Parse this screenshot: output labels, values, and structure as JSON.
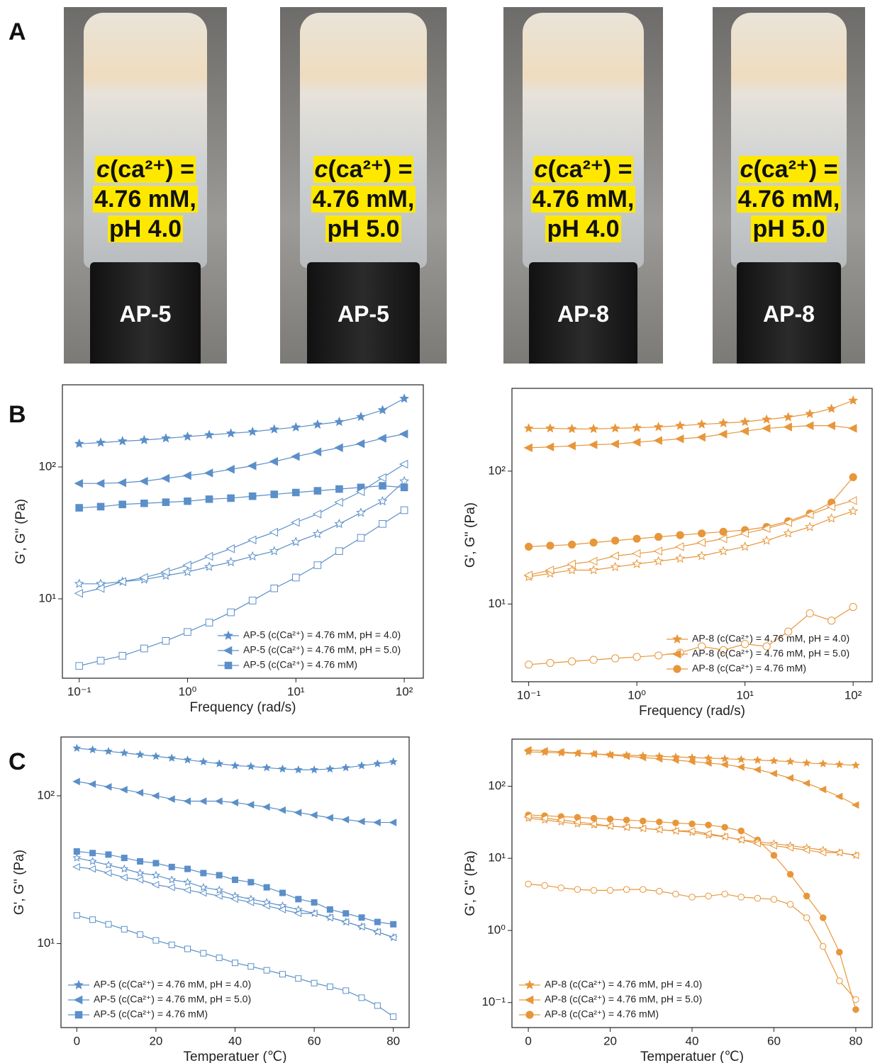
{
  "panels": [
    "A",
    "B",
    "C"
  ],
  "photos": [
    {
      "symbol": "c",
      "line1": "(ca²⁺) =",
      "line2": "4.76 mM,",
      "line3": "pH 4.0",
      "label": "AP-5"
    },
    {
      "symbol": "c",
      "line1": "(ca²⁺) =",
      "line2": "4.76 mM,",
      "line3": "pH 5.0",
      "label": "AP-5"
    },
    {
      "symbol": "c",
      "line1": "(ca²⁺) =",
      "line2": "4.76 mM,",
      "line3": "pH 4.0",
      "label": "AP-8"
    },
    {
      "symbol": "c",
      "line1": "(ca²⁺) =",
      "line2": "4.76 mM,",
      "line3": "pH 5.0",
      "label": "AP-8"
    }
  ],
  "chart_data": [
    {
      "type": "line",
      "xlabel": "Frequency (rad/s)",
      "ylabel": "G', G'' (Pa)",
      "xlog": true,
      "ylog": true,
      "legend": "lower right",
      "x": [
        0.1,
        0.158,
        0.251,
        0.398,
        0.631,
        1,
        1.585,
        2.512,
        3.981,
        6.31,
        10,
        15.85,
        25.12,
        39.81,
        63.1,
        100
      ],
      "xlim": [
        0.07,
        150
      ],
      "ylim": [
        2.5,
        420
      ],
      "xticks": [
        {
          "value": 0.1,
          "label": "10⁻¹"
        },
        {
          "value": 1,
          "label": "10⁰"
        },
        {
          "value": 10,
          "label": "10¹"
        },
        {
          "value": 100,
          "label": "10²"
        }
      ],
      "yticks": [
        {
          "value": 10,
          "label": "10¹"
        },
        {
          "value": 100,
          "label": "10²"
        }
      ],
      "series": [
        {
          "name": "AP-5 (c(Ca²⁺) = 4.76 mM, pH = 4.0)",
          "color": "#5b8fc9",
          "marker": "star",
          "fill": "filled",
          "values": [
            150,
            153,
            157,
            160,
            165,
            170,
            175,
            180,
            185,
            193,
            200,
            210,
            220,
            240,
            270,
            330
          ]
        },
        {
          "name": "AP-5 (c(Ca²⁺) = 4.76 mM, pH = 5.0)",
          "color": "#5b8fc9",
          "marker": "triangle-left",
          "fill": "filled",
          "values": [
            75,
            75,
            76,
            78,
            82,
            86,
            90,
            96,
            102,
            110,
            120,
            130,
            140,
            150,
            165,
            178
          ]
        },
        {
          "name": "AP-5 (c(Ca²⁺) = 4.76 mM)",
          "color": "#5b8fc9",
          "marker": "square",
          "fill": "filled",
          "values": [
            49,
            50,
            52,
            53,
            54,
            55,
            57,
            58,
            60,
            62,
            64,
            66,
            68,
            70,
            72,
            70
          ]
        },
        {
          "color": "#5b8fc9",
          "marker": "star",
          "fill": "open",
          "values": [
            13,
            13,
            13.5,
            14,
            15,
            16,
            17.5,
            19,
            21,
            23,
            27,
            31,
            37,
            45,
            55,
            78
          ]
        },
        {
          "color": "#5b8fc9",
          "marker": "triangle-left",
          "fill": "open",
          "values": [
            11,
            12,
            13.5,
            14.5,
            16,
            18,
            21,
            24,
            28,
            32,
            38,
            44,
            54,
            65,
            83,
            105
          ]
        },
        {
          "color": "#5b8fc9",
          "marker": "square",
          "fill": "open",
          "values": [
            3.1,
            3.4,
            3.7,
            4.2,
            4.8,
            5.6,
            6.6,
            7.9,
            9.7,
            12,
            14.5,
            18,
            23,
            29,
            37,
            47
          ]
        }
      ]
    },
    {
      "type": "line",
      "xlabel": "Frequency (rad/s)",
      "ylabel": "G', G'' (Pa)",
      "xlog": true,
      "ylog": true,
      "legend": "lower right",
      "x": [
        0.1,
        0.158,
        0.251,
        0.398,
        0.631,
        1,
        1.585,
        2.512,
        3.981,
        6.31,
        10,
        15.85,
        25.12,
        39.81,
        63.1,
        100
      ],
      "xlim": [
        0.07,
        150
      ],
      "ylim": [
        2.6,
        420
      ],
      "xticks": [
        {
          "value": 0.1,
          "label": "10⁻¹"
        },
        {
          "value": 1,
          "label": "10⁰"
        },
        {
          "value": 10,
          "label": "10¹"
        },
        {
          "value": 100,
          "label": "10²"
        }
      ],
      "yticks": [
        {
          "value": 10,
          "label": "10¹"
        },
        {
          "value": 100,
          "label": "10²"
        }
      ],
      "series": [
        {
          "name": "AP-8 (c(Ca²⁺) = 4.76 mM, pH = 4.0)",
          "color": "#e8963a",
          "marker": "star",
          "fill": "filled",
          "values": [
            210,
            210,
            208,
            208,
            210,
            212,
            215,
            220,
            225,
            230,
            235,
            245,
            255,
            270,
            295,
            340
          ]
        },
        {
          "name": "AP-8 (c(Ca²⁺) = 4.76 mM, pH = 5.0)",
          "color": "#e8963a",
          "marker": "triangle-left",
          "fill": "filled",
          "values": [
            150,
            152,
            155,
            158,
            160,
            165,
            170,
            175,
            180,
            190,
            200,
            210,
            215,
            220,
            220,
            210
          ]
        },
        {
          "name": "AP-8 (c(Ca²⁺) = 4.76 mM)",
          "color": "#e8963a",
          "marker": "circle",
          "fill": "filled",
          "values": [
            27,
            27.5,
            28,
            29,
            30,
            31,
            32,
            33,
            34,
            35,
            36,
            38,
            42,
            48,
            58,
            90
          ]
        },
        {
          "color": "#e8963a",
          "marker": "star",
          "fill": "open",
          "values": [
            16,
            17,
            18,
            18,
            19,
            20,
            21,
            22,
            23,
            25,
            27,
            30,
            34,
            38,
            44,
            50
          ]
        },
        {
          "color": "#e8963a",
          "marker": "triangle-left",
          "fill": "open",
          "values": [
            16.5,
            18,
            20,
            21,
            23,
            24,
            25,
            27,
            29,
            31,
            34,
            37,
            41,
            47,
            54,
            60
          ]
        },
        {
          "color": "#e8963a",
          "marker": "circle",
          "fill": "open",
          "values": [
            3.5,
            3.6,
            3.7,
            3.8,
            3.9,
            4.0,
            4.1,
            4.3,
            4.8,
            4.5,
            5.0,
            4.8,
            6.2,
            8.5,
            7.5,
            9.5
          ]
        }
      ]
    },
    {
      "type": "line",
      "xlabel": "Temperatuer (℃)",
      "ylabel": "G', G'' (Pa)",
      "xlog": false,
      "ylog": true,
      "legend": "lower left",
      "x": [
        0,
        4,
        8,
        12,
        16,
        20,
        24,
        28,
        32,
        36,
        40,
        44,
        48,
        52,
        56,
        60,
        64,
        68,
        72,
        76,
        80
      ],
      "xlim": [
        -4,
        84
      ],
      "ylim": [
        2.7,
        250
      ],
      "xticks": [
        0,
        20,
        40,
        60,
        80
      ],
      "yticks": [
        {
          "value": 10,
          "label": "10¹"
        },
        {
          "value": 100,
          "label": "10²"
        }
      ],
      "series": [
        {
          "name": "AP-5 (c(Ca²⁺) = 4.76 mM, pH = 4.0)",
          "color": "#5b8fc9",
          "marker": "star",
          "fill": "filled",
          "values": [
            210,
            205,
            200,
            195,
            190,
            185,
            180,
            175,
            170,
            165,
            160,
            158,
            155,
            152,
            150,
            150,
            152,
            155,
            160,
            165,
            170
          ]
        },
        {
          "name": "AP-5 (c(Ca²⁺) = 4.76 mM, pH = 5.0)",
          "color": "#5b8fc9",
          "marker": "triangle-left",
          "fill": "filled",
          "values": [
            125,
            120,
            115,
            110,
            105,
            100,
            95,
            92,
            92,
            92,
            90,
            87,
            84,
            80,
            77,
            74,
            71,
            69,
            67,
            66,
            66
          ]
        },
        {
          "name": "AP-5 (c(Ca²⁺) = 4.76 mM)",
          "color": "#5b8fc9",
          "marker": "square",
          "fill": "filled",
          "values": [
            42,
            41,
            40,
            38,
            36,
            35,
            33,
            32,
            30,
            29,
            27,
            26,
            24,
            22,
            20,
            19,
            17,
            16,
            15,
            14,
            13.5
          ]
        },
        {
          "color": "#5b8fc9",
          "marker": "star",
          "fill": "open",
          "values": [
            38,
            36,
            34,
            32,
            30,
            29,
            27,
            26,
            24,
            23,
            21,
            20,
            19,
            18,
            17,
            16,
            15,
            14,
            13,
            12,
            11
          ]
        },
        {
          "color": "#5b8fc9",
          "marker": "triangle-left",
          "fill": "open",
          "values": [
            33,
            32,
            30,
            28,
            27,
            25,
            24,
            23,
            22,
            21,
            20,
            19,
            18,
            17,
            16,
            16,
            15,
            14,
            13,
            12,
            11
          ]
        },
        {
          "color": "#5b8fc9",
          "marker": "square",
          "fill": "open",
          "values": [
            15.5,
            14.5,
            13.5,
            12.5,
            11.5,
            10.5,
            9.8,
            9.2,
            8.6,
            8,
            7.4,
            7,
            6.6,
            6.2,
            5.8,
            5.4,
            5.1,
            4.8,
            4.3,
            3.8,
            3.2
          ]
        }
      ]
    },
    {
      "type": "line",
      "xlabel": "Temperatuer (℃)",
      "ylabel": "G', G'' (Pa)",
      "xlog": false,
      "ylog": true,
      "legend": "lower left",
      "x": [
        0,
        4,
        8,
        12,
        16,
        20,
        24,
        28,
        32,
        36,
        40,
        44,
        48,
        52,
        56,
        60,
        64,
        68,
        72,
        76,
        80
      ],
      "xlim": [
        -4,
        84
      ],
      "ylim": [
        0.045,
        450
      ],
      "xticks": [
        0,
        20,
        40,
        60,
        80
      ],
      "yticks": [
        {
          "value": 0.1,
          "label": "10⁻¹"
        },
        {
          "value": 1,
          "label": "10⁰"
        },
        {
          "value": 10,
          "label": "10¹"
        },
        {
          "value": 100,
          "label": "10²"
        }
      ],
      "series": [
        {
          "name": "AP-8 (c(Ca²⁺) = 4.76 mM, pH = 4.0)",
          "color": "#e8963a",
          "marker": "star",
          "fill": "filled",
          "values": [
            300,
            295,
            290,
            285,
            280,
            275,
            270,
            265,
            260,
            255,
            250,
            245,
            240,
            235,
            230,
            225,
            220,
            210,
            205,
            200,
            195
          ]
        },
        {
          "name": "AP-8 (c(Ca²⁺) = 4.76 mM, pH = 5.0)",
          "color": "#e8963a",
          "marker": "triangle-left",
          "fill": "filled",
          "values": [
            320,
            310,
            300,
            290,
            280,
            270,
            260,
            250,
            240,
            230,
            220,
            210,
            200,
            185,
            170,
            150,
            130,
            110,
            90,
            72,
            55
          ]
        },
        {
          "name": "AP-8 (c(Ca²⁺) = 4.76 mM)",
          "color": "#e8963a",
          "marker": "circle",
          "fill": "filled",
          "values": [
            40,
            39,
            38,
            37,
            36,
            35,
            34,
            33,
            32,
            31,
            30,
            29,
            27,
            24,
            18,
            11,
            6,
            3,
            1.5,
            0.5,
            0.08
          ]
        },
        {
          "color": "#e8963a",
          "marker": "star",
          "fill": "open",
          "values": [
            36,
            34,
            32,
            30,
            29,
            28,
            27,
            26,
            25,
            24,
            23,
            21,
            20,
            18,
            17,
            16,
            15,
            14,
            13,
            12,
            11
          ]
        },
        {
          "color": "#e8963a",
          "marker": "triangle-left",
          "fill": "open",
          "values": [
            38,
            36,
            34,
            32,
            30,
            28,
            27,
            26,
            25,
            24,
            24,
            22,
            20,
            18,
            16,
            15,
            14,
            13,
            12,
            12,
            11
          ]
        },
        {
          "color": "#e8963a",
          "marker": "circle",
          "fill": "open",
          "values": [
            4.4,
            4.2,
            3.9,
            3.7,
            3.6,
            3.6,
            3.7,
            3.7,
            3.5,
            3.2,
            2.9,
            3.0,
            3.2,
            2.9,
            2.8,
            2.7,
            2.3,
            1.5,
            0.6,
            0.2,
            0.11
          ]
        }
      ]
    }
  ]
}
